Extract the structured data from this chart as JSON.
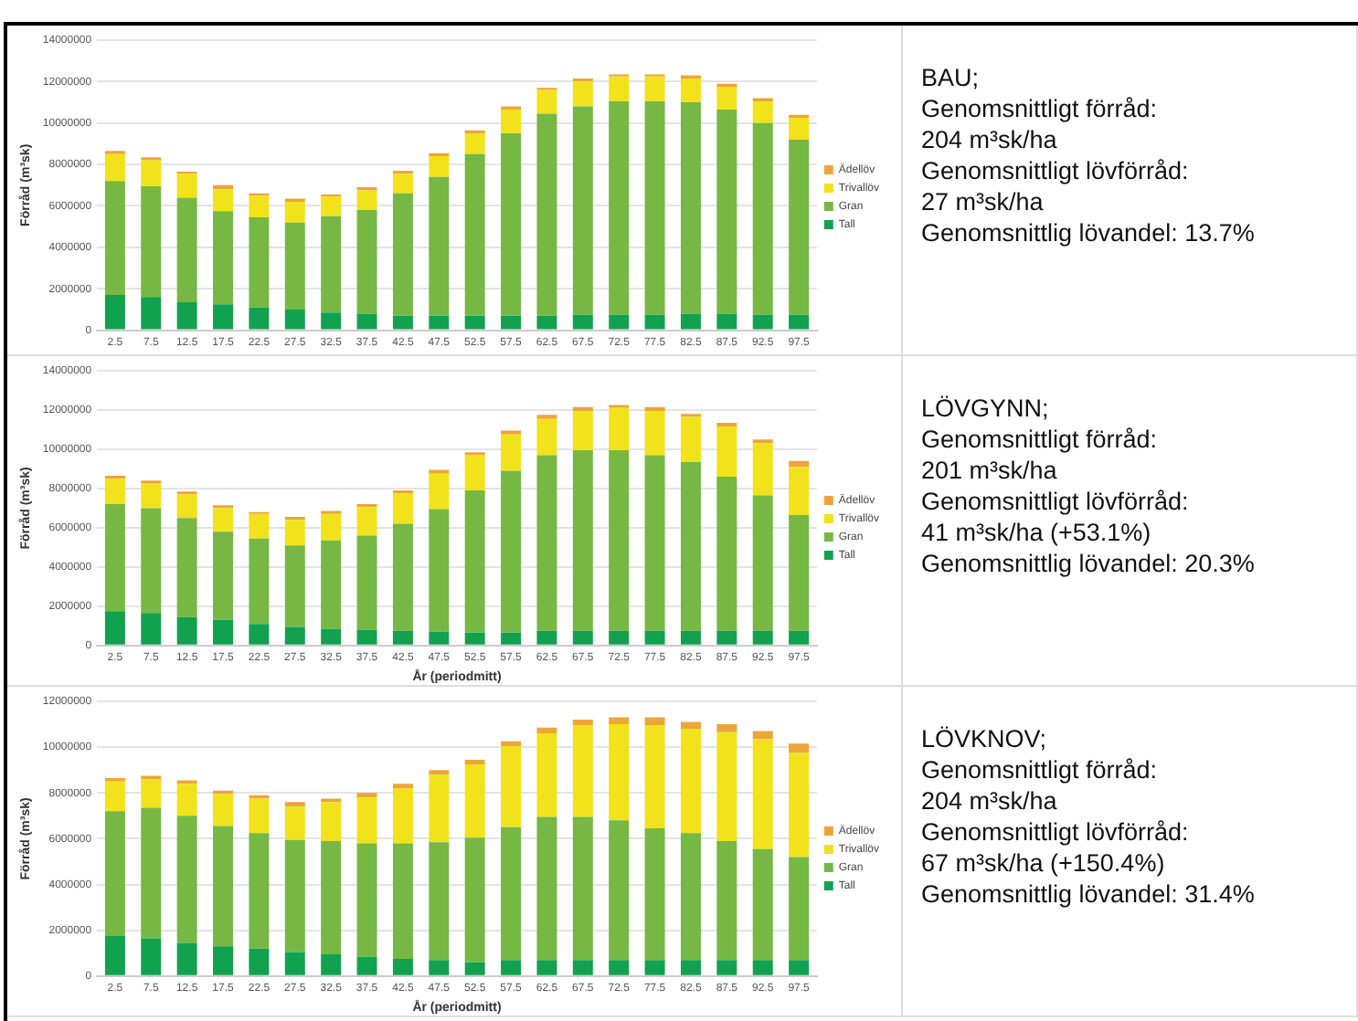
{
  "chart_data": [
    {
      "type": "bar",
      "stacked": true,
      "ylabel": "Förråd (m³sk)",
      "categories": [
        "2.5",
        "7.5",
        "12.5",
        "17.5",
        "22.5",
        "27.5",
        "32.5",
        "37.5",
        "42.5",
        "47.5",
        "52.5",
        "57.5",
        "62.5",
        "67.5",
        "72.5",
        "77.5",
        "82.5",
        "87.5",
        "92.5",
        "97.5"
      ],
      "ylim": [
        0,
        14000000
      ],
      "yticks": [
        0,
        2000000,
        4000000,
        6000000,
        8000000,
        10000000,
        12000000,
        14000000
      ],
      "grid": "y",
      "legend": "right",
      "series": [
        {
          "name": "Tall",
          "color": "#12a14f",
          "values": [
            1700000,
            1600000,
            1350000,
            1250000,
            1100000,
            1000000,
            850000,
            800000,
            700000,
            700000,
            700000,
            700000,
            700000,
            750000,
            750000,
            750000,
            800000,
            800000,
            750000,
            750000
          ]
        },
        {
          "name": "Gran",
          "color": "#76b843",
          "values": [
            5500000,
            5350000,
            5050000,
            4500000,
            4350000,
            4200000,
            4650000,
            5000000,
            5900000,
            6700000,
            7800000,
            8800000,
            9750000,
            10050000,
            10300000,
            10300000,
            10200000,
            9850000,
            9250000,
            8450000
          ]
        },
        {
          "name": "Trivallöv",
          "color": "#f2e21b",
          "values": [
            1300000,
            1250000,
            1150000,
            1050000,
            1050000,
            1000000,
            950000,
            950000,
            950000,
            1000000,
            1000000,
            1150000,
            1150000,
            1200000,
            1200000,
            1200000,
            1150000,
            1100000,
            1050000,
            1050000
          ]
        },
        {
          "name": "Ädellöv",
          "color": "#eda53a",
          "values": [
            150000,
            150000,
            100000,
            200000,
            100000,
            150000,
            100000,
            150000,
            150000,
            150000,
            150000,
            150000,
            100000,
            150000,
            100000,
            100000,
            150000,
            150000,
            150000,
            150000
          ]
        }
      ]
    },
    {
      "type": "other",
      "title": "BAU;",
      "annotations": [
        "Genomsnittligt förråd:",
        "204 m³sk/ha",
        "Genomsnittligt lövförråd:",
        "27 m³sk/ha",
        "Genomsnittlig lövandel: 13.7%"
      ]
    },
    {
      "type": "bar",
      "stacked": true,
      "ylabel": "Förråd (m³sk)",
      "xlabel": "År (periodmitt)",
      "categories": [
        "2.5",
        "7.5",
        "12.5",
        "17.5",
        "22.5",
        "27.5",
        "32.5",
        "37.5",
        "42.5",
        "47.5",
        "52.5",
        "57.5",
        "62.5",
        "67.5",
        "72.5",
        "77.5",
        "82.5",
        "87.5",
        "92.5",
        "97.5"
      ],
      "ylim": [
        0,
        14000000
      ],
      "yticks": [
        0,
        2000000,
        4000000,
        6000000,
        8000000,
        10000000,
        12000000,
        14000000
      ],
      "grid": "y",
      "legend": "right",
      "series": [
        {
          "name": "Tall",
          "color": "#12a14f",
          "values": [
            1750000,
            1650000,
            1450000,
            1300000,
            1100000,
            950000,
            850000,
            800000,
            750000,
            700000,
            650000,
            650000,
            750000,
            750000,
            750000,
            750000,
            750000,
            750000,
            750000,
            750000
          ]
        },
        {
          "name": "Gran",
          "color": "#76b843",
          "values": [
            5450000,
            5350000,
            5050000,
            4500000,
            4350000,
            4150000,
            4500000,
            4800000,
            5450000,
            6250000,
            7250000,
            8250000,
            8950000,
            9200000,
            9200000,
            8950000,
            8600000,
            7850000,
            6900000,
            5900000
          ]
        },
        {
          "name": "Trivallöv",
          "color": "#f2e21b",
          "values": [
            1300000,
            1250000,
            1200000,
            1200000,
            1250000,
            1300000,
            1350000,
            1450000,
            1550000,
            1800000,
            1800000,
            1850000,
            1850000,
            2000000,
            2150000,
            2250000,
            2300000,
            2550000,
            2650000,
            2450000
          ]
        },
        {
          "name": "Ädellöv",
          "color": "#eda53a",
          "values": [
            150000,
            150000,
            150000,
            150000,
            100000,
            150000,
            150000,
            150000,
            150000,
            200000,
            150000,
            200000,
            200000,
            200000,
            150000,
            200000,
            150000,
            200000,
            200000,
            300000
          ]
        }
      ]
    },
    {
      "type": "other",
      "title": "LÖVGYNN;",
      "annotations": [
        "Genomsnittligt förråd:",
        "201 m³sk/ha",
        "Genomsnittligt lövförråd:",
        "41 m³sk/ha (+53.1%)",
        "Genomsnittlig lövandel: 20.3%"
      ]
    },
    {
      "type": "bar",
      "stacked": true,
      "ylabel": "Förråd (m³sk)",
      "xlabel": "År (periodmitt)",
      "categories": [
        "2.5",
        "7.5",
        "12.5",
        "17.5",
        "22.5",
        "27.5",
        "32.5",
        "37.5",
        "42.5",
        "47.5",
        "52.5",
        "57.5",
        "62.5",
        "67.5",
        "72.5",
        "77.5",
        "82.5",
        "87.5",
        "92.5",
        "97.5"
      ],
      "ylim": [
        0,
        12000000
      ],
      "yticks": [
        0,
        2000000,
        4000000,
        6000000,
        8000000,
        10000000,
        12000000
      ],
      "grid": "y",
      "legend": "right",
      "series": [
        {
          "name": "Tall",
          "color": "#12a14f",
          "values": [
            1750000,
            1650000,
            1450000,
            1300000,
            1200000,
            1050000,
            950000,
            850000,
            750000,
            700000,
            600000,
            700000,
            700000,
            700000,
            700000,
            700000,
            700000,
            700000,
            700000,
            700000
          ]
        },
        {
          "name": "Gran",
          "color": "#76b843",
          "values": [
            5450000,
            5700000,
            5550000,
            5250000,
            5050000,
            4900000,
            4950000,
            4950000,
            5050000,
            5150000,
            5450000,
            5800000,
            6250000,
            6250000,
            6100000,
            5750000,
            5550000,
            5200000,
            4850000,
            4500000
          ]
        },
        {
          "name": "Trivallöv",
          "color": "#f2e21b",
          "values": [
            1300000,
            1250000,
            1400000,
            1400000,
            1500000,
            1450000,
            1700000,
            2000000,
            2400000,
            2950000,
            3200000,
            3550000,
            3650000,
            4000000,
            4200000,
            4500000,
            4550000,
            4750000,
            4800000,
            4550000
          ]
        },
        {
          "name": "Ädellöv",
          "color": "#eda53a",
          "values": [
            150000,
            150000,
            150000,
            150000,
            150000,
            200000,
            150000,
            200000,
            200000,
            200000,
            200000,
            200000,
            250000,
            250000,
            300000,
            350000,
            300000,
            350000,
            350000,
            400000
          ]
        }
      ]
    },
    {
      "type": "other",
      "title": "LÖVKNOV;",
      "annotations": [
        "Genomsnittligt förråd:",
        "204 m³sk/ha",
        "Genomsnittligt lövförråd:",
        "67 m³sk/ha (+150.4%)",
        "Genomsnittlig lövandel: 31.4%"
      ]
    }
  ]
}
